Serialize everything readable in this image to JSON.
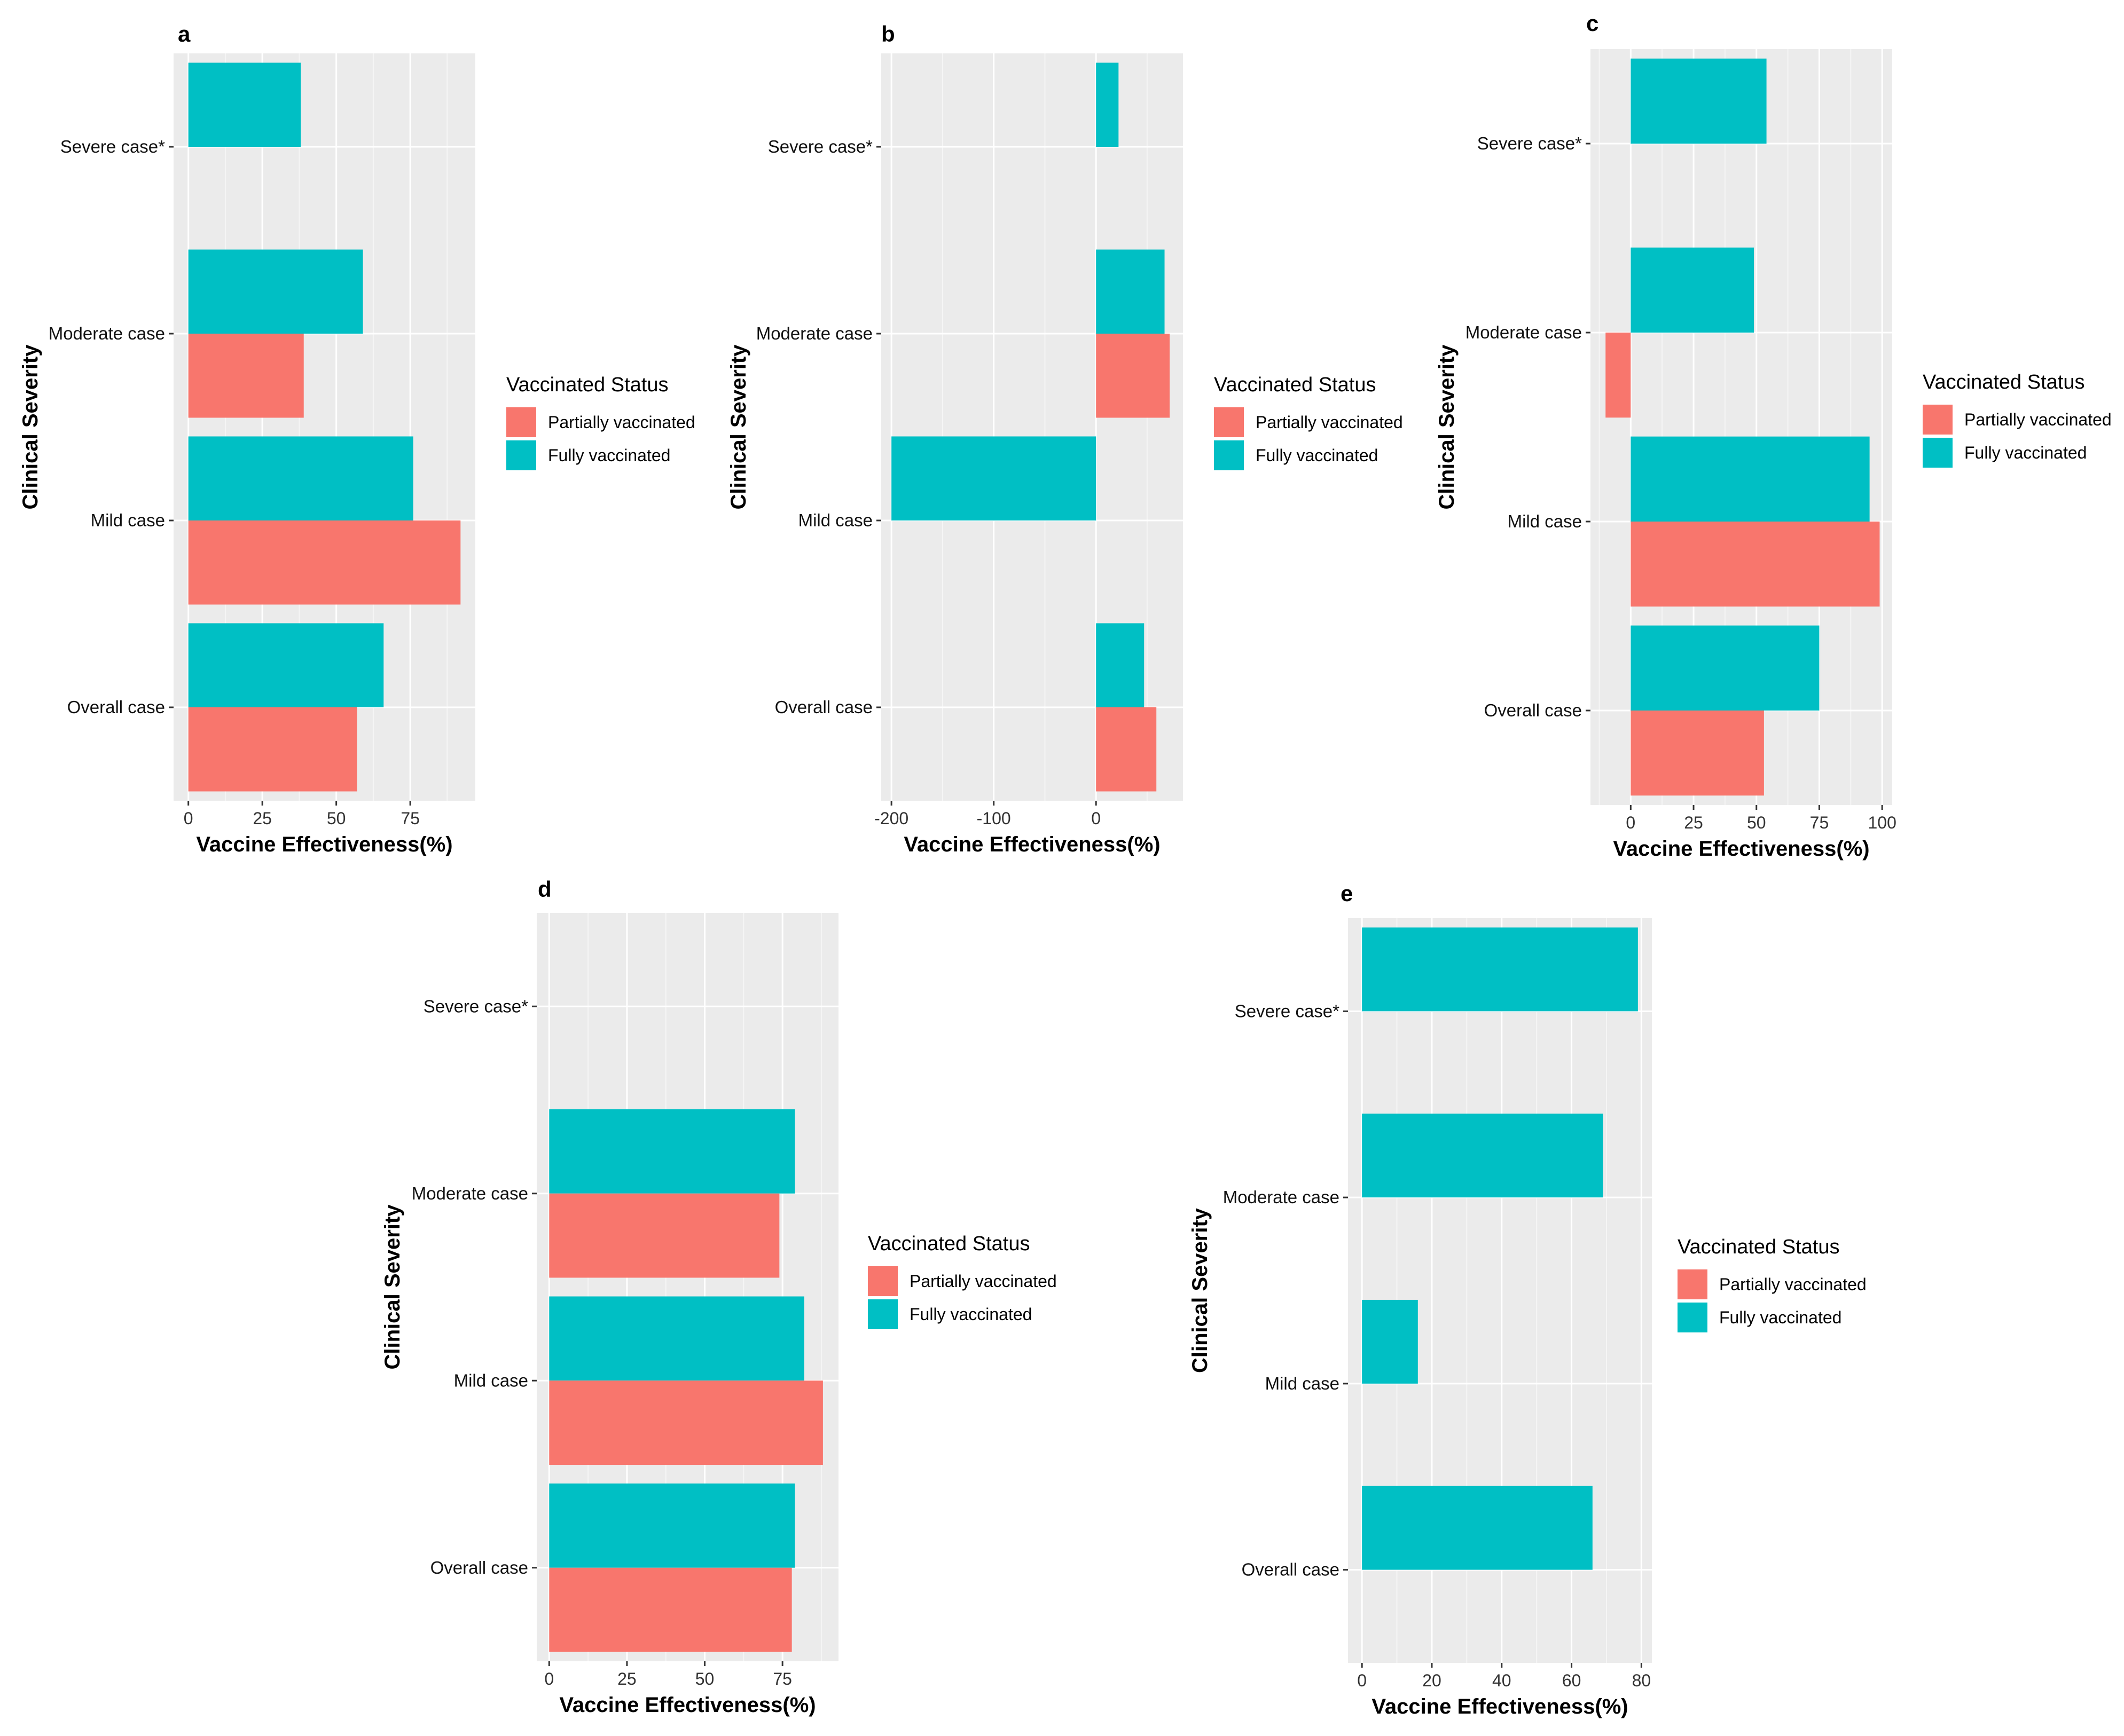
{
  "colors": {
    "partial": "#F8766D",
    "full": "#00BFC4",
    "panel_bg": "#EBEBEB",
    "grid_major": "#FFFFFF",
    "grid_minor": "#F5F5F5"
  },
  "legend": {
    "title": "Vaccinated Status",
    "partial_label": "Partially vaccinated",
    "full_label": "Fully vaccinated"
  },
  "chart_data": [
    {
      "panel": "a",
      "type": "bar",
      "orientation": "horizontal",
      "categories": [
        "Overall case",
        "Mild case",
        "Moderate case",
        "Severe case*"
      ],
      "series": [
        {
          "name": "Partially vaccinated",
          "values": [
            57,
            92,
            39,
            null
          ]
        },
        {
          "name": "Fully vaccinated",
          "values": [
            66,
            76,
            59,
            38
          ]
        }
      ],
      "xlim": [
        -5,
        97
      ],
      "xticks": [
        0,
        25,
        50,
        75
      ],
      "xlabel": "Vaccine Effectiveness(%)",
      "ylabel": "Clinical Severity"
    },
    {
      "panel": "b",
      "type": "bar",
      "orientation": "horizontal",
      "categories": [
        "Overall case",
        "Mild case",
        "Moderate case",
        "Severe case*"
      ],
      "series": [
        {
          "name": "Partially vaccinated",
          "values": [
            59,
            null,
            72,
            null
          ]
        },
        {
          "name": "Fully vaccinated",
          "values": [
            47,
            -200,
            67,
            22
          ]
        }
      ],
      "xlim": [
        -210,
        85
      ],
      "xticks": [
        -200,
        -100,
        0
      ],
      "xlabel": "Vaccine Effectiveness(%)",
      "ylabel": "Clinical Severity"
    },
    {
      "panel": "c",
      "type": "bar",
      "orientation": "horizontal",
      "categories": [
        "Overall case",
        "Mild case",
        "Moderate case",
        "Severe case*"
      ],
      "series": [
        {
          "name": "Partially vaccinated",
          "values": [
            53,
            99,
            -10,
            null
          ]
        },
        {
          "name": "Fully vaccinated",
          "values": [
            75,
            95,
            49,
            54
          ]
        }
      ],
      "xlim": [
        -16,
        104
      ],
      "xticks": [
        0,
        25,
        50,
        75,
        100
      ],
      "xlabel": "Vaccine Effectiveness(%)",
      "ylabel": "Clinical Severity"
    },
    {
      "panel": "d",
      "type": "bar",
      "orientation": "horizontal",
      "categories": [
        "Overall case",
        "Mild case",
        "Moderate case",
        "Severe case*"
      ],
      "series": [
        {
          "name": "Partially vaccinated",
          "values": [
            78,
            88,
            74,
            null
          ]
        },
        {
          "name": "Fully vaccinated",
          "values": [
            79,
            82,
            79,
            null
          ]
        }
      ],
      "xlim": [
        -4,
        93
      ],
      "xticks": [
        0,
        25,
        50,
        75
      ],
      "xlabel": "Vaccine Effectiveness(%)",
      "ylabel": "Clinical Severity"
    },
    {
      "panel": "e",
      "type": "bar",
      "orientation": "horizontal",
      "categories": [
        "Overall case",
        "Mild case",
        "Moderate case",
        "Severe case*"
      ],
      "series": [
        {
          "name": "Partially vaccinated",
          "values": [
            null,
            null,
            null,
            null
          ]
        },
        {
          "name": "Fully vaccinated",
          "values": [
            66,
            16,
            69,
            79
          ]
        }
      ],
      "xlim": [
        -4,
        83
      ],
      "xticks": [
        0,
        20,
        40,
        60,
        80
      ],
      "xlabel": "Vaccine Effectiveness(%)",
      "ylabel": "Clinical Severity"
    }
  ]
}
